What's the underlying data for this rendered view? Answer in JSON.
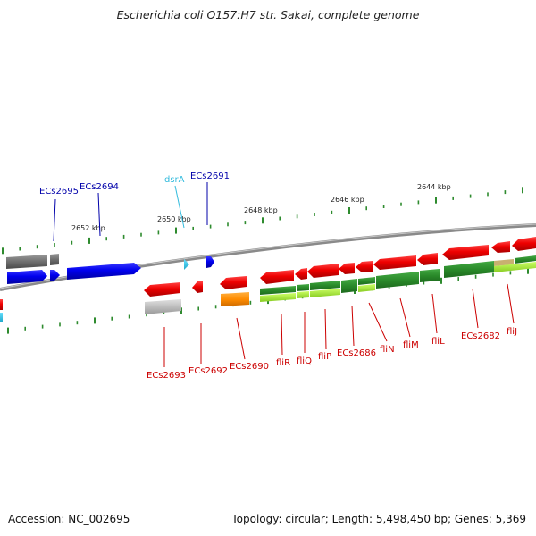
{
  "title": "Escherichia coli O157:H7 str. Sakai, complete genome",
  "footer": {
    "accession": "Accession: NC_002695",
    "stats": "Topology: circular; Length: 5,498,450 bp; Genes: 5,369"
  },
  "colors": {
    "backbone": "#888888",
    "ticks": "#2e8b2e",
    "forward_label": "#0000aa",
    "reverse_label": "#cc0000",
    "rna_label": "#33bbdd",
    "fwd_gene": "#0000ee",
    "rev_gene": "#ee0000",
    "pseudo_gene": "#808080",
    "rna_gene": "#33ccee",
    "orange_gene": "#ff8c00",
    "cds_dark_green": "#2a8a2a",
    "cds_light_green": "#aaee44"
  },
  "kbp_ticks": [
    "2652 kbp",
    "2650 kbp",
    "2648 kbp",
    "2646 kbp",
    "2644 kbp"
  ],
  "forward_labels": [
    "ECs2695",
    "ECs2694",
    "dsrA",
    "ECs2691"
  ],
  "reverse_labels": [
    "ECs2693",
    "ECs2692",
    "ECs2690",
    "fliR",
    "fliQ",
    "fliP",
    "ECs2686",
    "fliN",
    "fliM",
    "fliL",
    "ECs2682",
    "fliJ"
  ]
}
